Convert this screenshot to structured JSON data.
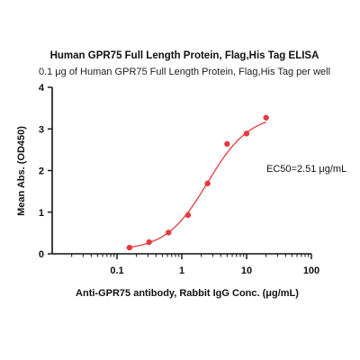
{
  "chart_data": {
    "type": "scatter",
    "title": "Human GPR75 Full Length Protein, Flag,His Tag ELISA",
    "subtitle": "0.1 μg of Human GPR75 Full Length Protein, Flag,His Tag per well",
    "xlabel": "Anti-GPR75 antibody, Rabbit IgG Conc. (μg/mL)",
    "ylabel": "Mean Abs. (OD450)",
    "x_scale": "log",
    "xlim": [
      0.01,
      100
    ],
    "ylim": [
      0,
      4
    ],
    "x_ticks": [
      "0.1",
      "1",
      "10",
      "100"
    ],
    "x_tick_values": [
      0.1,
      1,
      10,
      100
    ],
    "y_ticks": [
      "0",
      "1",
      "2",
      "3",
      "4"
    ],
    "y_tick_values": [
      0,
      1,
      2,
      3,
      4
    ],
    "grid": false,
    "annotation": "EC50=2.51 μg/mL",
    "series": [
      {
        "color": "#e8393e",
        "points": [
          {
            "x": 0.156,
            "y": 0.15
          },
          {
            "x": 0.3125,
            "y": 0.28
          },
          {
            "x": 0.625,
            "y": 0.51
          },
          {
            "x": 1.25,
            "y": 0.93
          },
          {
            "x": 2.5,
            "y": 1.69
          },
          {
            "x": 5,
            "y": 2.64
          },
          {
            "x": 10,
            "y": 2.89
          },
          {
            "x": 20,
            "y": 3.27
          }
        ],
        "fit": {
          "model": "4PL",
          "bottom": 0.08,
          "top": 3.35,
          "ec50": 2.51,
          "hill": 1.35
        }
      }
    ]
  }
}
